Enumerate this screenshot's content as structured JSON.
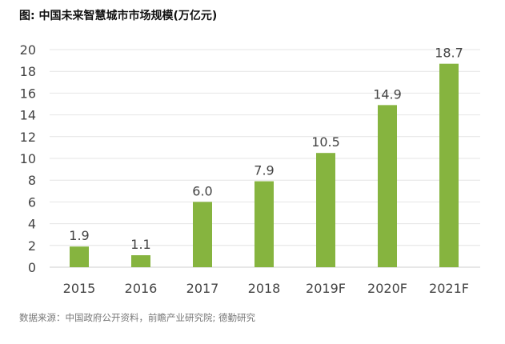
{
  "chart_data": {
    "type": "bar",
    "title": "图: 中国未来智慧城市市场规模(万亿元)",
    "categories": [
      "2015",
      "2016",
      "2017",
      "2018",
      "2019F",
      "2020F",
      "2021F"
    ],
    "values": [
      1.9,
      1.1,
      6.0,
      7.9,
      10.5,
      14.9,
      18.7
    ],
    "data_labels": [
      "1.9",
      "1.1",
      "6.0",
      "7.9",
      "10.5",
      "14.9",
      "18.7"
    ],
    "ylim": [
      0,
      20
    ],
    "yticks": [
      0,
      2,
      4,
      6,
      8,
      10,
      12,
      14,
      16,
      18,
      20
    ],
    "grid": true,
    "bar_color": "#86b43f",
    "source": "数据来源：中国政府公开资料，前瞻产业研究院; 德勤研究"
  }
}
